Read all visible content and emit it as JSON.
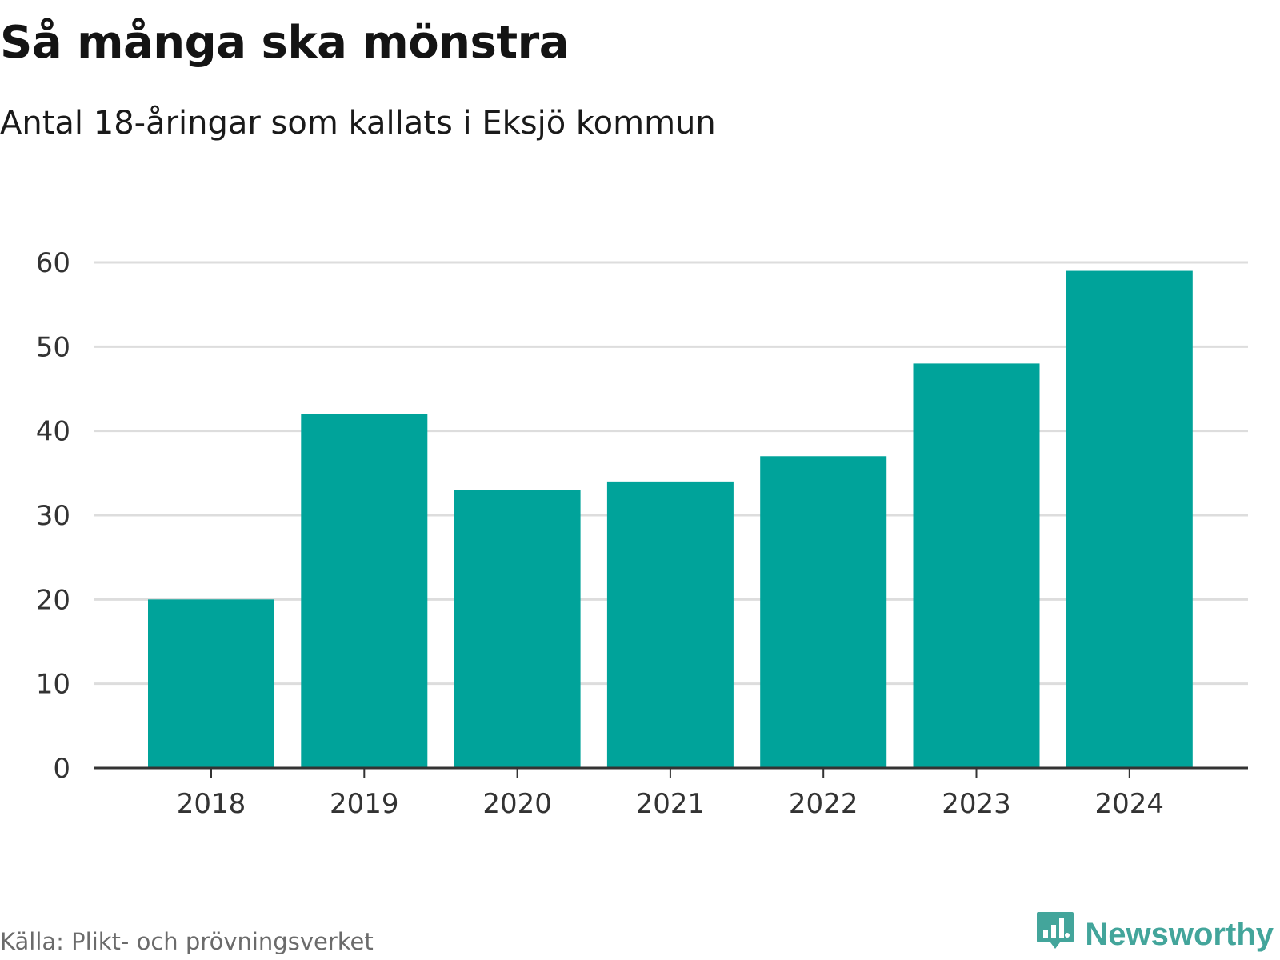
{
  "title": "Så många ska mönstra",
  "subtitle": "Antal 18-åringar som kallats i Eksjö kommun",
  "source": "Källa: Plikt- och prövningsverket",
  "brand": {
    "name": "Newsworthy",
    "icon": "newsworthy-logo-icon"
  },
  "colors": {
    "bar": "#00a39a",
    "grid": "#dddddd",
    "axis": "#333333",
    "tick_text": "#333333",
    "brand": "#43a59b"
  },
  "chart_data": {
    "type": "bar",
    "categories": [
      "2018",
      "2019",
      "2020",
      "2021",
      "2022",
      "2023",
      "2024"
    ],
    "values": [
      20,
      42,
      33,
      34,
      37,
      48,
      59
    ],
    "xlabel": "",
    "ylabel": "",
    "ylim": [
      0,
      60
    ],
    "yticks": [
      0,
      10,
      20,
      30,
      40,
      50,
      60
    ],
    "grid": true,
    "legend": "none"
  }
}
